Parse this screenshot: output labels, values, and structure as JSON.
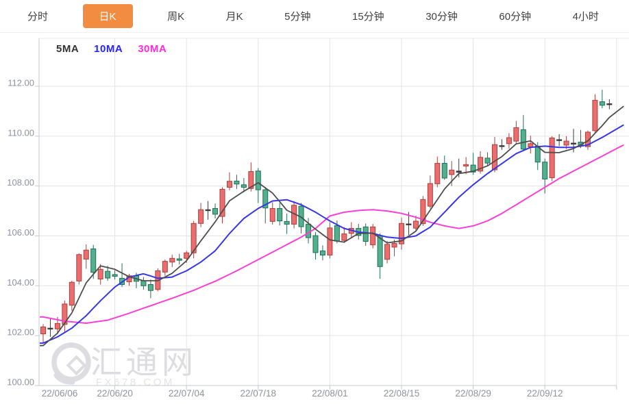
{
  "tabs": {
    "items": [
      {
        "label": "分时",
        "active": false
      },
      {
        "label": "日K",
        "active": true
      },
      {
        "label": "周K",
        "active": false
      },
      {
        "label": "月K",
        "active": false
      },
      {
        "label": "5分钟",
        "active": false
      },
      {
        "label": "15分钟",
        "active": false
      },
      {
        "label": "30分钟",
        "active": false
      },
      {
        "label": "60分钟",
        "active": false
      },
      {
        "label": "4小时",
        "active": false
      }
    ],
    "active_bg": "#F18C41",
    "active_text": "#FFFFFF"
  },
  "legend": [
    {
      "label": "5MA",
      "color": "#333333"
    },
    {
      "label": "10MA",
      "color": "#2424FF"
    },
    {
      "label": "30MA",
      "color": "#FF2BDC"
    }
  ],
  "watermark": {
    "brand": "汇通网",
    "domain": "FX678.COM",
    "color": "#DCDCE1"
  },
  "chart_data": {
    "type": "candlestick",
    "title": "USD daily K-line with moving averages",
    "convention": "red = up (close > open), green = down (close < open)",
    "y_axis": {
      "min": 100,
      "max": 112,
      "step": 2,
      "tick_labels": [
        "100.00",
        "102.00",
        "104.00",
        "106.00",
        "108.00",
        "110.00",
        "112.00"
      ],
      "grid": true
    },
    "x_axis": {
      "tick_every_days": 10,
      "tick_labels": [
        "22/06/06",
        "22/06/20",
        "22/07/04",
        "22/07/18",
        "22/08/01",
        "22/08/15",
        "22/08/29",
        "22/09/12"
      ],
      "grid": true
    },
    "colors": {
      "up_fill": "#EC6D6D",
      "up_stroke": "#A8403C",
      "down_fill": "#53AF8C",
      "down_stroke": "#1F6E58",
      "doji": "#3A3A3A",
      "ma5": "#4D4D4D",
      "ma10": "#3535EB",
      "ma30": "#FA3FD4",
      "grid": "#E3E3E6",
      "axis": "#C6C8D2",
      "top_border": "#E9E9EC",
      "label": "#8E92A0"
    },
    "candles_format": [
      "date",
      "open",
      "high",
      "low",
      "close"
    ],
    "candles": [
      [
        "22/06/06",
        102.07,
        102.46,
        101.71,
        102.35
      ],
      [
        "22/06/07",
        102.3,
        102.71,
        101.95,
        102.28
      ],
      [
        "22/06/08",
        102.27,
        102.75,
        102.05,
        102.49
      ],
      [
        "22/06/09",
        102.45,
        103.41,
        102.12,
        103.27
      ],
      [
        "22/06/10",
        103.22,
        104.2,
        103.0,
        104.14
      ],
      [
        "22/06/13",
        104.19,
        105.3,
        104.05,
        105.25
      ],
      [
        "22/06/14",
        105.07,
        105.66,
        104.68,
        105.43
      ],
      [
        "22/06/15",
        105.48,
        105.64,
        104.28,
        104.54
      ],
      [
        "22/06/16",
        104.27,
        104.87,
        104.05,
        104.66
      ],
      [
        "22/06/17",
        104.58,
        104.8,
        104.2,
        104.31
      ],
      [
        "22/06/20",
        104.45,
        104.62,
        104.25,
        104.38
      ],
      [
        "22/06/21",
        104.3,
        104.9,
        103.95,
        104.05
      ],
      [
        "22/06/22",
        104.16,
        104.48,
        104.0,
        104.4
      ],
      [
        "22/06/23",
        104.4,
        104.52,
        103.9,
        104.18
      ],
      [
        "22/06/24",
        104.2,
        104.35,
        103.85,
        104.0
      ],
      [
        "22/06/27",
        104.05,
        104.25,
        103.5,
        103.81
      ],
      [
        "22/06/28",
        103.85,
        104.7,
        103.78,
        104.6
      ],
      [
        "22/06/29",
        104.55,
        105.05,
        104.4,
        104.98
      ],
      [
        "22/06/30",
        104.95,
        105.25,
        104.75,
        105.1
      ],
      [
        "22/07/01",
        105.08,
        105.28,
        104.85,
        105.02
      ],
      [
        "22/07/04",
        105.1,
        105.4,
        104.92,
        105.32
      ],
      [
        "22/07/05",
        105.32,
        106.6,
        105.1,
        106.5
      ],
      [
        "22/07/06",
        106.5,
        107.32,
        106.35,
        107.05
      ],
      [
        "22/07/07",
        107.02,
        107.4,
        106.65,
        107.05
      ],
      [
        "22/07/08",
        107.1,
        107.3,
        106.7,
        106.87
      ],
      [
        "22/07/11",
        106.78,
        107.95,
        106.5,
        107.87
      ],
      [
        "22/07/12",
        107.95,
        108.55,
        107.83,
        108.19
      ],
      [
        "22/07/13",
        108.2,
        108.45,
        107.88,
        108.08
      ],
      [
        "22/07/14",
        108.05,
        108.32,
        107.75,
        107.95
      ],
      [
        "22/07/15",
        107.9,
        108.95,
        107.78,
        108.58
      ],
      [
        "22/07/18",
        108.6,
        108.72,
        107.32,
        107.85
      ],
      [
        "22/07/19",
        107.85,
        107.96,
        106.5,
        107.12
      ],
      [
        "22/07/20",
        106.58,
        107.35,
        106.45,
        107.1
      ],
      [
        "22/07/21",
        107.1,
        107.32,
        106.42,
        106.6
      ],
      [
        "22/07/22",
        106.58,
        106.9,
        106.08,
        106.47
      ],
      [
        "22/07/25",
        106.47,
        107.4,
        106.3,
        107.23
      ],
      [
        "22/07/26",
        107.19,
        107.32,
        106.1,
        106.37
      ],
      [
        "22/07/27",
        106.47,
        106.72,
        105.7,
        105.93
      ],
      [
        "22/07/28",
        106.01,
        106.15,
        105.05,
        105.33
      ],
      [
        "22/07/29",
        105.4,
        105.62,
        105.02,
        105.23
      ],
      [
        "22/08/01",
        105.23,
        106.55,
        105.1,
        106.32
      ],
      [
        "22/08/02",
        106.41,
        106.62,
        105.7,
        105.79
      ],
      [
        "22/08/03",
        105.82,
        106.35,
        105.72,
        106.08
      ],
      [
        "22/08/04",
        106.1,
        106.55,
        105.95,
        106.3
      ],
      [
        "22/08/05",
        106.3,
        106.48,
        105.85,
        106.02
      ],
      [
        "22/08/08",
        106.36,
        106.5,
        105.6,
        105.78
      ],
      [
        "22/08/09",
        105.64,
        106.48,
        105.5,
        106.36
      ],
      [
        "22/08/10",
        106.01,
        106.1,
        104.28,
        104.77
      ],
      [
        "22/08/11",
        105.06,
        105.8,
        104.9,
        105.66
      ],
      [
        "22/08/12",
        105.55,
        105.85,
        105.18,
        105.7
      ],
      [
        "22/08/15",
        105.68,
        106.73,
        105.45,
        106.5
      ],
      [
        "22/08/16",
        106.46,
        106.96,
        106.04,
        106.48
      ],
      [
        "22/08/17",
        106.31,
        106.81,
        106.2,
        106.59
      ],
      [
        "22/08/18",
        106.49,
        107.6,
        106.4,
        107.46
      ],
      [
        "22/08/19",
        107.19,
        108.42,
        107.1,
        108.1
      ],
      [
        "22/08/22",
        108.09,
        109.18,
        107.95,
        108.91
      ],
      [
        "22/08/23",
        108.91,
        109.22,
        108.25,
        108.32
      ],
      [
        "22/08/24",
        108.46,
        109.0,
        108.0,
        108.64
      ],
      [
        "22/08/25",
        108.6,
        109.1,
        108.35,
        108.55
      ],
      [
        "22/08/26",
        108.8,
        109.16,
        108.48,
        108.86
      ],
      [
        "22/08/29",
        108.84,
        109.33,
        108.45,
        108.56
      ],
      [
        "22/08/30",
        108.6,
        109.4,
        108.5,
        109.15
      ],
      [
        "22/08/31",
        109.12,
        109.35,
        108.8,
        108.92
      ],
      [
        "22/09/01",
        108.65,
        109.97,
        108.55,
        109.66
      ],
      [
        "22/09/02",
        109.62,
        109.88,
        109.45,
        109.6
      ],
      [
        "22/09/05",
        109.7,
        110.12,
        109.5,
        109.94
      ],
      [
        "22/09/06",
        109.8,
        110.61,
        109.68,
        110.34
      ],
      [
        "22/09/07",
        110.26,
        110.85,
        109.4,
        109.48
      ],
      [
        "22/09/08",
        109.57,
        110.02,
        109.3,
        109.7
      ],
      [
        "22/09/09",
        109.6,
        109.76,
        108.64,
        108.96
      ],
      [
        "22/09/12",
        108.96,
        109.1,
        107.7,
        108.28
      ],
      [
        "22/09/13",
        108.33,
        110.0,
        108.2,
        109.93
      ],
      [
        "22/09/14",
        109.86,
        110.08,
        109.6,
        109.82
      ],
      [
        "22/09/15",
        109.64,
        110.0,
        109.48,
        109.8
      ],
      [
        "22/09/16",
        109.72,
        110.29,
        109.35,
        109.68
      ],
      [
        "22/09/19",
        109.76,
        110.25,
        109.52,
        109.6
      ],
      [
        "22/09/20",
        109.58,
        110.22,
        109.45,
        110.16
      ],
      [
        "22/09/21",
        110.22,
        111.68,
        110.1,
        111.44
      ],
      [
        "22/09/22",
        111.38,
        111.86,
        111.12,
        111.24
      ],
      [
        "22/09/23",
        111.28,
        111.48,
        111.08,
        111.3
      ]
    ],
    "ma_anchor_format": [
      [
        "day_index",
        "value"
      ]
    ],
    "ma5_anchors": [
      [
        0,
        101.6
      ],
      [
        2,
        102.1
      ],
      [
        4,
        102.91
      ],
      [
        6,
        104.12
      ],
      [
        8,
        104.8
      ],
      [
        10,
        104.66
      ],
      [
        12,
        104.36
      ],
      [
        14,
        104.2
      ],
      [
        16,
        104.2
      ],
      [
        18,
        104.5
      ],
      [
        20,
        105.0
      ],
      [
        22,
        105.8
      ],
      [
        24,
        106.56
      ],
      [
        26,
        107.41
      ],
      [
        28,
        107.79
      ],
      [
        30,
        108.13
      ],
      [
        32,
        107.72
      ],
      [
        34,
        107.03
      ],
      [
        36,
        106.75
      ],
      [
        38,
        106.27
      ],
      [
        40,
        105.84
      ],
      [
        42,
        105.75
      ],
      [
        44,
        106.1
      ],
      [
        46,
        106.11
      ],
      [
        48,
        105.72
      ],
      [
        50,
        105.8
      ],
      [
        52,
        106.19
      ],
      [
        54,
        107.03
      ],
      [
        56,
        107.88
      ],
      [
        58,
        108.5
      ],
      [
        60,
        108.59
      ],
      [
        62,
        108.81
      ],
      [
        64,
        109.18
      ],
      [
        66,
        109.69
      ],
      [
        68,
        109.81
      ],
      [
        70,
        109.35
      ],
      [
        72,
        109.34
      ],
      [
        74,
        109.5
      ],
      [
        76,
        109.81
      ],
      [
        78,
        110.42
      ],
      [
        79,
        110.75
      ],
      [
        81,
        111.2
      ]
    ],
    "ma10_anchors": [
      [
        0,
        101.7
      ],
      [
        2,
        101.95
      ],
      [
        4,
        102.3
      ],
      [
        6,
        102.8
      ],
      [
        8,
        103.4
      ],
      [
        10,
        103.95
      ],
      [
        12,
        104.35
      ],
      [
        14,
        104.48
      ],
      [
        16,
        104.3
      ],
      [
        18,
        104.35
      ],
      [
        20,
        104.6
      ],
      [
        22,
        104.95
      ],
      [
        24,
        105.4
      ],
      [
        26,
        106.1
      ],
      [
        28,
        106.7
      ],
      [
        30,
        107.1
      ],
      [
        32,
        107.4
      ],
      [
        34,
        107.45
      ],
      [
        36,
        107.25
      ],
      [
        38,
        106.95
      ],
      [
        40,
        106.6
      ],
      [
        42,
        106.3
      ],
      [
        44,
        106.15
      ],
      [
        46,
        106.1
      ],
      [
        48,
        105.95
      ],
      [
        50,
        105.9
      ],
      [
        52,
        106.0
      ],
      [
        54,
        106.35
      ],
      [
        56,
        106.95
      ],
      [
        58,
        107.55
      ],
      [
        60,
        108.05
      ],
      [
        62,
        108.5
      ],
      [
        64,
        108.9
      ],
      [
        66,
        109.3
      ],
      [
        68,
        109.55
      ],
      [
        70,
        109.6
      ],
      [
        72,
        109.55
      ],
      [
        74,
        109.55
      ],
      [
        76,
        109.65
      ],
      [
        78,
        109.95
      ],
      [
        81,
        110.45
      ]
    ],
    "ma30_anchors": [
      [
        0,
        102.75
      ],
      [
        3,
        102.58
      ],
      [
        6,
        102.5
      ],
      [
        9,
        102.62
      ],
      [
        12,
        102.9
      ],
      [
        15,
        103.2
      ],
      [
        18,
        103.5
      ],
      [
        21,
        103.82
      ],
      [
        24,
        104.18
      ],
      [
        27,
        104.6
      ],
      [
        30,
        105.05
      ],
      [
        33,
        105.5
      ],
      [
        36,
        105.95
      ],
      [
        38,
        106.3
      ],
      [
        40,
        106.8
      ],
      [
        42,
        106.95
      ],
      [
        44,
        107.02
      ],
      [
        46,
        107.05
      ],
      [
        48,
        107.0
      ],
      [
        50,
        106.9
      ],
      [
        52,
        106.75
      ],
      [
        54,
        106.55
      ],
      [
        56,
        106.4
      ],
      [
        58,
        106.3
      ],
      [
        60,
        106.4
      ],
      [
        62,
        106.6
      ],
      [
        64,
        106.9
      ],
      [
        66,
        107.25
      ],
      [
        68,
        107.6
      ],
      [
        70,
        107.95
      ],
      [
        72,
        108.3
      ],
      [
        74,
        108.6
      ],
      [
        76,
        108.9
      ],
      [
        78,
        109.2
      ],
      [
        81,
        109.65
      ]
    ]
  }
}
